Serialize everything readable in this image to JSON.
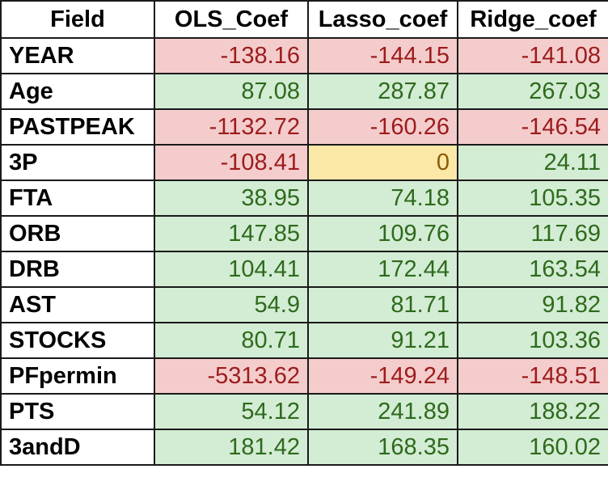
{
  "colors": {
    "negative_fill": "#f4cccc",
    "negative_text": "#9c1c1c",
    "positive_fill": "#d3ecd4",
    "positive_text": "#2e6a1c",
    "zero_fill": "#fce8a6",
    "zero_text": "#8a5a00"
  },
  "table": {
    "headers": [
      "Field",
      "OLS_Coef",
      "Lasso_coef",
      "Ridge_coef"
    ],
    "rows": [
      {
        "field": "YEAR",
        "ols": "-138.16",
        "lasso": "-144.15",
        "ridge": "-141.08"
      },
      {
        "field": "Age",
        "ols": "87.08",
        "lasso": "287.87",
        "ridge": "267.03"
      },
      {
        "field": "PASTPEAK",
        "ols": "-1132.72",
        "lasso": "-160.26",
        "ridge": "-146.54"
      },
      {
        "field": "3P",
        "ols": "-108.41",
        "lasso": "0",
        "ridge": "24.11"
      },
      {
        "field": "FTA",
        "ols": "38.95",
        "lasso": "74.18",
        "ridge": "105.35"
      },
      {
        "field": "ORB",
        "ols": "147.85",
        "lasso": "109.76",
        "ridge": "117.69"
      },
      {
        "field": "DRB",
        "ols": "104.41",
        "lasso": "172.44",
        "ridge": "163.54"
      },
      {
        "field": "AST",
        "ols": "54.9",
        "lasso": "81.71",
        "ridge": "91.82"
      },
      {
        "field": "STOCKS",
        "ols": "80.71",
        "lasso": "91.21",
        "ridge": "103.36"
      },
      {
        "field": "PFpermin",
        "ols": "-5313.62",
        "lasso": "-149.24",
        "ridge": "-148.51"
      },
      {
        "field": "PTS",
        "ols": "54.12",
        "lasso": "241.89",
        "ridge": "188.22"
      },
      {
        "field": "3andD",
        "ols": "181.42",
        "lasso": "168.35",
        "ridge": "160.02"
      }
    ]
  }
}
